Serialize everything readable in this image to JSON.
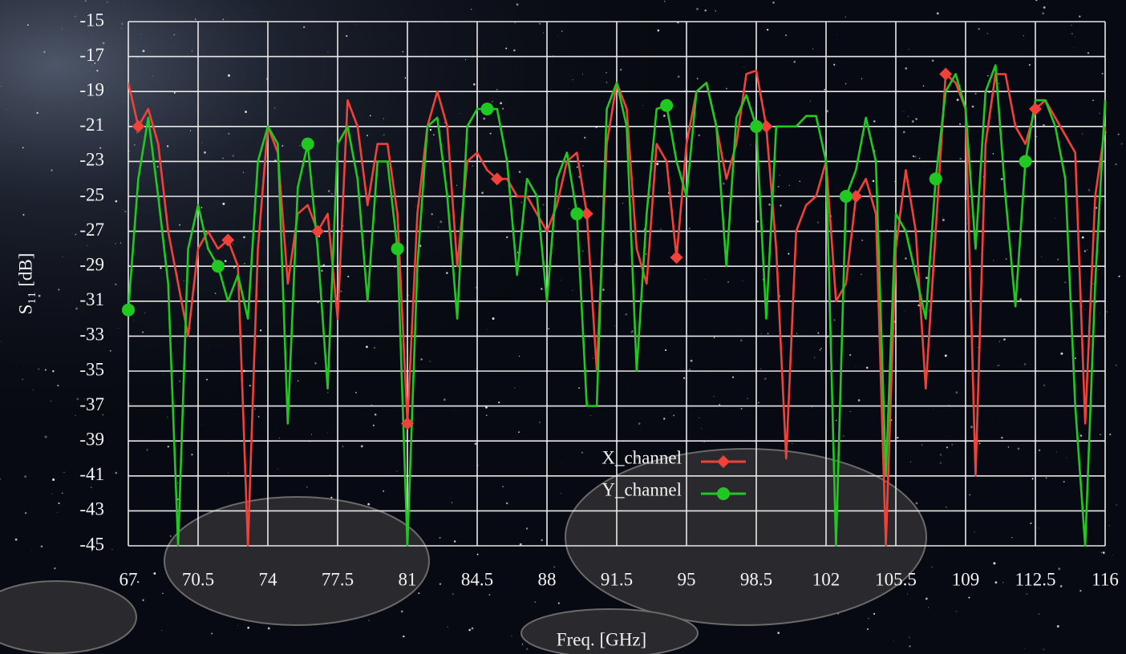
{
  "chart_data": {
    "type": "line",
    "xlabel": "Freq. [GHz]",
    "ylabel": "S₁₁ [dB]",
    "xlim": [
      67,
      116
    ],
    "ylim": [
      -45,
      -15
    ],
    "xticks": [
      67,
      70.5,
      74,
      77.5,
      81,
      84.5,
      88,
      91.5,
      95,
      98.5,
      102,
      105.5,
      109,
      112.5,
      116
    ],
    "yticks": [
      -15,
      -17,
      -19,
      -21,
      -23,
      -25,
      -27,
      -29,
      -31,
      -33,
      -35,
      -37,
      -39,
      -41,
      -43,
      -45
    ],
    "grid": true,
    "legend_position": "lower center",
    "x": [
      67,
      67.5,
      68,
      68.5,
      69,
      69.5,
      70,
      70.5,
      71,
      71.5,
      72,
      72.5,
      73,
      73.5,
      74,
      74.5,
      75,
      75.5,
      76,
      76.5,
      77,
      77.5,
      78,
      78.5,
      79,
      79.5,
      80,
      80.5,
      81,
      81.5,
      82,
      82.5,
      83,
      83.5,
      84,
      84.5,
      85,
      85.5,
      86,
      86.5,
      87,
      87.5,
      88,
      88.5,
      89,
      89.5,
      90,
      90.5,
      91,
      91.5,
      92,
      92.5,
      93,
      93.5,
      94,
      94.5,
      95,
      95.5,
      96,
      96.5,
      97,
      97.5,
      98,
      98.5,
      99,
      99.5,
      100,
      100.5,
      101,
      101.5,
      102,
      102.5,
      103,
      103.5,
      104,
      104.5,
      105,
      105.5,
      106,
      106.5,
      107,
      107.5,
      108,
      108.5,
      109,
      109.5,
      110,
      110.5,
      111,
      111.5,
      112,
      112.5,
      113,
      113.5,
      114,
      114.5,
      115,
      115.5,
      116
    ],
    "series": [
      {
        "name": "X_channel",
        "color": "#f0413a",
        "marker": "diamond",
        "markevery": 9,
        "markstart": 1,
        "values": [
          -18.5,
          -21,
          -20,
          -22,
          -27,
          -30,
          -33,
          -28,
          -27,
          -28,
          -27.5,
          -29,
          -45,
          -28,
          -21,
          -22.5,
          -30,
          -26,
          -25.5,
          -27,
          -26,
          -32,
          -19.5,
          -21,
          -25.5,
          -22,
          -22,
          -26,
          -38,
          -26,
          -21,
          -19,
          -21,
          -29,
          -23,
          -22.5,
          -23.5,
          -24,
          -24,
          -25,
          -25,
          -26,
          -27,
          -25.5,
          -23,
          -22.5,
          -26,
          -35,
          -22,
          -18.5,
          -20,
          -28,
          -30,
          -22,
          -23,
          -28.5,
          -22,
          -19,
          -18.5,
          -21,
          -24,
          -22,
          -18,
          -17.8,
          -21,
          -28,
          -40,
          -27,
          -25.5,
          -25,
          -23,
          -31,
          -30,
          -25,
          -24,
          -26,
          -45,
          -28,
          -23.5,
          -27,
          -36,
          -27,
          -18,
          -18.5,
          -20,
          -41,
          -22,
          -18,
          -18,
          -21,
          -22,
          -20,
          -19.5,
          -20.5,
          -21.5,
          -22.5,
          -38,
          -25,
          -21
        ]
      },
      {
        "name": "Y_channel",
        "color": "#22c822",
        "marker": "circle",
        "markevery": 9,
        "markstart": 0,
        "values": [
          -31.5,
          -24,
          -20.5,
          -25,
          -30,
          -45,
          -28,
          -25.5,
          -28,
          -29,
          -31,
          -29.5,
          -32,
          -23,
          -21,
          -22,
          -38,
          -24.5,
          -22,
          -28,
          -36,
          -22,
          -21,
          -24,
          -31,
          -23,
          -23,
          -28,
          -45,
          -29,
          -21,
          -20.5,
          -25,
          -32,
          -21,
          -20,
          -20,
          -20,
          -23,
          -29.5,
          -24,
          -25,
          -31,
          -24,
          -22.5,
          -26,
          -37,
          -37,
          -20,
          -18.5,
          -21,
          -35,
          -26,
          -20,
          -19.8,
          -23,
          -25,
          -19,
          -18.5,
          -21,
          -29,
          -20.5,
          -19.2,
          -21,
          -32,
          -21,
          -21,
          -21,
          -20.4,
          -20.4,
          -23,
          -45,
          -25,
          -23.5,
          -20.5,
          -23,
          -41,
          -26,
          -27,
          -29.5,
          -32,
          -24,
          -19,
          -18,
          -20,
          -28,
          -19,
          -17.5,
          -25,
          -31.3,
          -23,
          -19.5,
          -19.5,
          -21,
          -24,
          -37,
          -45,
          -30,
          -19.5
        ]
      }
    ]
  }
}
